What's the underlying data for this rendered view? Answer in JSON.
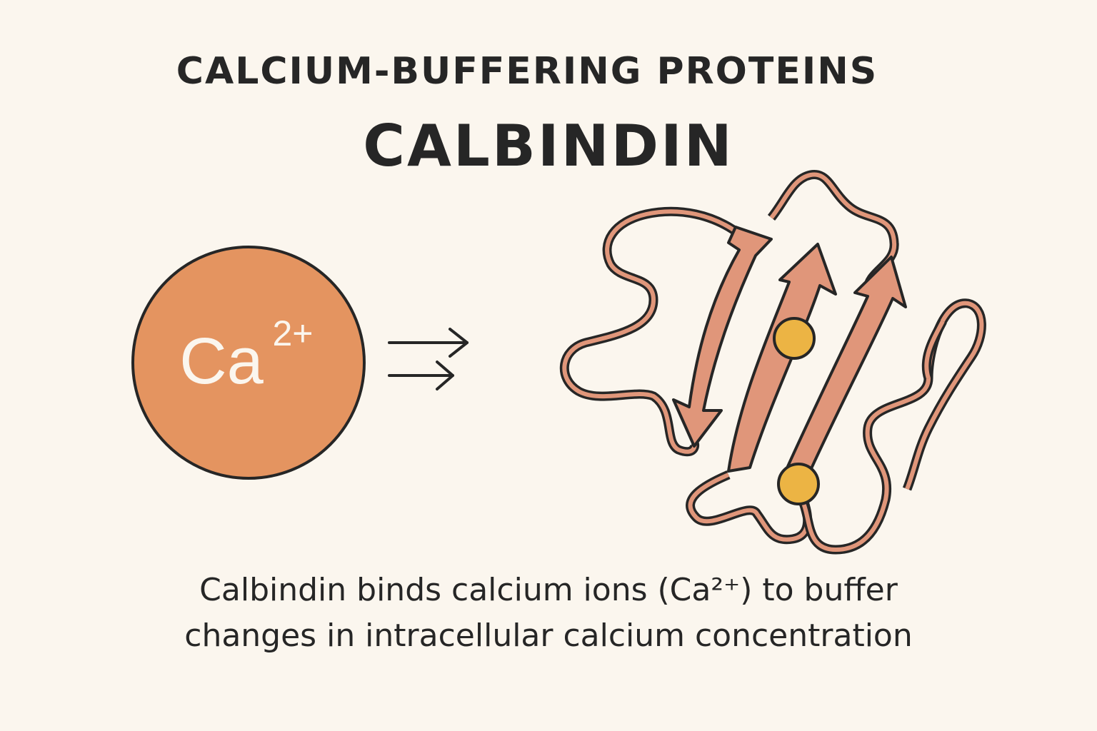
{
  "header": {
    "heading": "CALCIUM-BUFFERING PROTEINS",
    "title": "CALBINDIN"
  },
  "ion": {
    "symbol": "Ca",
    "charge": "2+"
  },
  "caption": {
    "line1": "Calbindin binds calcium ions (Ca²⁺) to buffer",
    "line2": "changes in intracellular calcium concentration"
  },
  "colors": {
    "background": "#fbf6ee",
    "ion_fill": "#e49460",
    "strand_fill": "#e0967a",
    "outline": "#262626",
    "calcium_site": "#ecb444"
  },
  "icons": {
    "arrows": "double-right-arrow-icon",
    "protein": "calbindin-protein-icon",
    "binding_site": "calcium-binding-site-icon"
  }
}
